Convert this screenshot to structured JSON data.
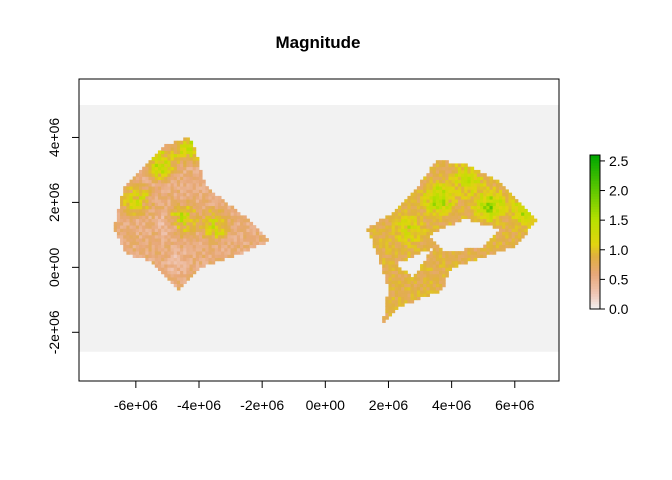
{
  "chart_data": {
    "type": "heatmap",
    "title": "Magnitude",
    "xlabel": "",
    "ylabel": "",
    "xlim": [
      -7800000,
      7400000
    ],
    "ylim": [
      -3500000,
      5800000
    ],
    "x_ticks": [
      -6000000,
      -4000000,
      -2000000,
      0,
      2000000,
      4000000,
      6000000
    ],
    "x_tick_labels": [
      "-6e+06",
      "-4e+06",
      "-2e+06",
      "0e+00",
      "2e+06",
      "4e+06",
      "6e+06"
    ],
    "y_ticks": [
      -2000000,
      0,
      2000000,
      4000000
    ],
    "y_tick_labels": [
      "-2e+06",
      "0e+00",
      "2e+06",
      "4e+06"
    ],
    "raster_extent": {
      "xmin": -7800000,
      "xmax": 7400000,
      "ymin": -2600000,
      "ymax": 5000000
    },
    "background_color": "#f2f2f2",
    "colorbar": {
      "min": 0.0,
      "max": 2.6,
      "ticks": [
        0.0,
        0.5,
        1.0,
        1.5,
        2.0,
        2.5
      ],
      "tick_labels": [
        "0.0",
        "0.5",
        "1.0",
        "1.5",
        "2.0",
        "2.5"
      ],
      "stops": [
        {
          "value": 0.0,
          "color": "#f2f2f2"
        },
        {
          "value": 0.25,
          "color": "#f0c8b8"
        },
        {
          "value": 0.6,
          "color": "#e8a878"
        },
        {
          "value": 0.9,
          "color": "#e0b040"
        },
        {
          "value": 1.1,
          "color": "#e2d410"
        },
        {
          "value": 1.5,
          "color": "#b8e000"
        },
        {
          "value": 2.0,
          "color": "#60c800"
        },
        {
          "value": 2.6,
          "color": "#00a600"
        }
      ]
    },
    "regions": [
      {
        "name": "west",
        "base_value": 0.58,
        "outline": [
          [
            -5000000,
            3800000
          ],
          [
            -4300000,
            4000000
          ],
          [
            -4100000,
            3600000
          ],
          [
            -3800000,
            2500000
          ],
          [
            -3000000,
            1900000
          ],
          [
            -2300000,
            1400000
          ],
          [
            -1800000,
            800000
          ],
          [
            -3000000,
            300000
          ],
          [
            -4000000,
            0
          ],
          [
            -4600000,
            -700000
          ],
          [
            -5500000,
            200000
          ],
          [
            -6300000,
            400000
          ],
          [
            -6700000,
            1200000
          ],
          [
            -6400000,
            2400000
          ],
          [
            -5400000,
            3500000
          ]
        ],
        "hotspots": [
          [
            -5200000,
            3200000,
            1.6
          ],
          [
            -4500000,
            1500000,
            1.4
          ],
          [
            -3500000,
            1300000,
            1.3
          ],
          [
            -6000000,
            2100000,
            1.3
          ],
          [
            -4300000,
            3700000,
            1.5
          ]
        ],
        "low_spots": [
          [
            -5000000,
            1300000,
            0.3
          ],
          [
            -4700000,
            200000,
            0.3
          ]
        ]
      },
      {
        "name": "east",
        "base_value": 0.85,
        "outline": [
          [
            3500000,
            3300000
          ],
          [
            4400000,
            3200000
          ],
          [
            5600000,
            2600000
          ],
          [
            6400000,
            1800000
          ],
          [
            6700000,
            1500000
          ],
          [
            6100000,
            700000
          ],
          [
            5000000,
            300000
          ],
          [
            4000000,
            0
          ],
          [
            3700000,
            -700000
          ],
          [
            2400000,
            -1200000
          ],
          [
            1800000,
            -1800000
          ],
          [
            2000000,
            -600000
          ],
          [
            1700000,
            300000
          ],
          [
            1300000,
            1200000
          ],
          [
            2200000,
            1700000
          ],
          [
            2800000,
            2300000
          ]
        ],
        "holes": [
          [
            [
              3300000,
              1000000
            ],
            [
              4400000,
              1500000
            ],
            [
              5500000,
              1200000
            ],
            [
              5000000,
              600000
            ],
            [
              3800000,
              500000
            ]
          ],
          [
            [
              2200000,
              100000
            ],
            [
              3400000,
              600000
            ],
            [
              2800000,
              -300000
            ]
          ]
        ],
        "hotspots": [
          [
            3600000,
            2100000,
            1.6
          ],
          [
            5200000,
            1900000,
            1.7
          ],
          [
            6300000,
            1800000,
            1.5
          ],
          [
            2600000,
            1200000,
            1.3
          ],
          [
            4500000,
            2700000,
            1.4
          ]
        ],
        "low_spots": [
          [
            4700000,
            900000,
            0.5
          ]
        ]
      }
    ]
  }
}
